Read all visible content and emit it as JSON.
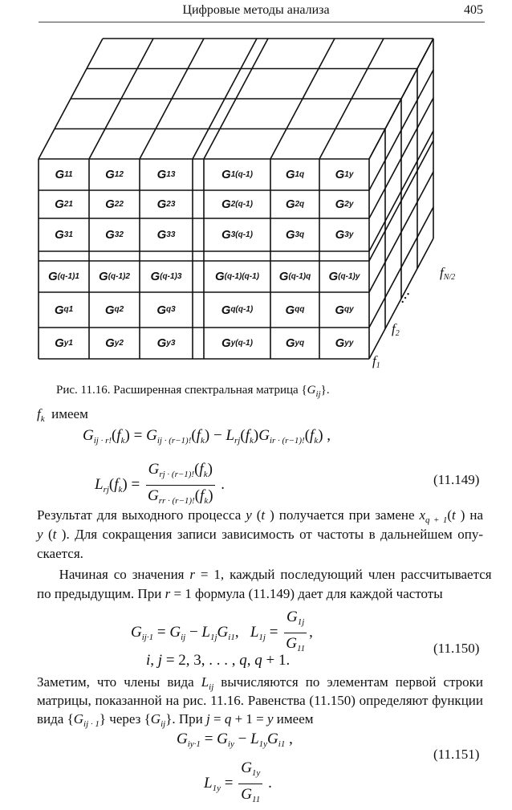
{
  "header": {
    "title": "Цифровые методы анализа",
    "page_number": "405"
  },
  "figure": {
    "cells": [
      [
        "11",
        "12",
        "13",
        "1(q-1)",
        "1q",
        "1y"
      ],
      [
        "21",
        "22",
        "23",
        "2(q-1)",
        "2q",
        "2y"
      ],
      [
        "31",
        "32",
        "33",
        "3(q-1)",
        "3q",
        "3y"
      ],
      [
        "(q-1)1",
        "(q-1)2",
        "(q-1)3",
        "(q-1)(q-1)",
        "(q-1)q",
        "(q-1)y"
      ],
      [
        "q1",
        "q2",
        "q3",
        "q(q-1)",
        "qq",
        "qy"
      ],
      [
        "y1",
        "y2",
        "y3",
        "y(q-1)",
        "yq",
        "yy"
      ]
    ],
    "cell_symbol": "G",
    "freq_labels": [
      {
        "v": "f",
        "s": "1"
      },
      {
        "v": "f",
        "s": "2"
      },
      {
        "v": "f",
        "s": "N/2"
      }
    ],
    "ellipsis": "• • •",
    "caption": [
      "Рис. 11.16. Расширенная спектральная матрица {",
      {
        "m": "G",
        "s": "ij"
      },
      "}."
    ]
  },
  "intro": [
    {
      "m": "f",
      "s": "k"
    },
    "  имеем"
  ],
  "eq149": {
    "line1": [
      {
        "m": "G",
        "s": "ij · r!"
      },
      "(",
      {
        "m": "f",
        "s": "k"
      },
      ") = ",
      {
        "m": "G",
        "s": "ij · (r−1)!"
      },
      "(",
      {
        "m": "f",
        "s": "k"
      },
      ") − ",
      {
        "m": "L",
        "s": "rj"
      },
      "(",
      {
        "m": "f",
        "s": "k"
      },
      ")",
      {
        "m": "G",
        "s": "ir · (r−1)!"
      },
      "(",
      {
        "m": "f",
        "s": "k"
      },
      ") ,"
    ],
    "line2": [
      {
        "m": "L",
        "s": "rj"
      },
      "(",
      {
        "m": "f",
        "s": "k"
      },
      ") = ",
      {
        "frac": {
          "num": [
            {
              "m": "G",
              "s": "rj · (r−1)!"
            },
            "(",
            {
              "m": "f",
              "s": "k"
            },
            ")"
          ],
          "den": [
            {
              "m": "G",
              "s": "rr · (r−1)!"
            },
            "(",
            {
              "m": "f",
              "s": "k"
            },
            ")"
          ]
        }
      },
      " ."
    ],
    "number": "(11.149)"
  },
  "para1": [
    [
      "Результат для выходного процесса ",
      {
        "m": "y"
      },
      " (",
      {
        "m": "t"
      },
      " ) получается при замене ",
      {
        "m": "x",
        "s": "q + 1"
      },
      "(",
      {
        "m": "t"
      },
      " ) на"
    ],
    [
      {
        "m": "y"
      },
      " (",
      {
        "m": "t"
      },
      " ). Для сокращения записи зависимость от частоты в дальнейшем опу-"
    ],
    [
      "скается."
    ]
  ],
  "para2": [
    [
      "    Начиная со значения ",
      {
        "m": "r"
      },
      " = 1, каждый последующий член рассчитывается"
    ],
    [
      "по предыдущим. При ",
      {
        "m": "r"
      },
      " = 1 формула (11.149) дает для каждой частоты"
    ]
  ],
  "eq150": {
    "line1": [
      {
        "m": "G",
        "s": "ij·1"
      },
      " = ",
      {
        "m": "G",
        "s": "ij"
      },
      " − ",
      {
        "m": "L",
        "s": "1j"
      },
      {
        "m": "G",
        "s": "i1"
      },
      ",   ",
      {
        "m": "L",
        "s": "1j"
      },
      " = ",
      {
        "frac": {
          "num": [
            {
              "m": "G",
              "s": "1j"
            }
          ],
          "den": [
            {
              "m": "G",
              "s": "11"
            }
          ]
        }
      },
      ","
    ],
    "line2": [
      {
        "m": "i"
      },
      ", ",
      {
        "m": "j"
      },
      " = 2, 3, . . . , ",
      {
        "m": "q"
      },
      ", ",
      {
        "m": "q"
      },
      " + 1."
    ],
    "number": "(11.150)"
  },
  "para3": [
    [
      "Заметим, что члены вида ",
      {
        "m": "L",
        "s": "ij"
      },
      " вычисляются по элементам первой строки"
    ],
    [
      "матрицы, показанной на рис. 11.16. Равенства (11.150) определяют функции"
    ],
    [
      "вида {",
      {
        "m": "G",
        "s": "ij · 1"
      },
      "} через {",
      {
        "m": "G",
        "s": "ij"
      },
      "}. При ",
      {
        "m": "j"
      },
      " = ",
      {
        "m": "q"
      },
      " + 1 = ",
      {
        "m": "y"
      },
      " имеем"
    ]
  ],
  "eq151": {
    "line1": [
      {
        "m": "G",
        "s": "iy·1"
      },
      " = ",
      {
        "m": "G",
        "s": "iy"
      },
      " − ",
      {
        "m": "L",
        "s": "1y"
      },
      {
        "m": "G",
        "s": "i1"
      },
      " ,"
    ],
    "line2": [
      {
        "m": "L",
        "s": "1y"
      },
      " = ",
      {
        "frac": {
          "num": [
            {
              "m": "G",
              "s": "1y"
            }
          ],
          "den": [
            {
              "m": "G",
              "s": "11"
            }
          ]
        }
      },
      " ."
    ],
    "number": "(11.151)"
  }
}
